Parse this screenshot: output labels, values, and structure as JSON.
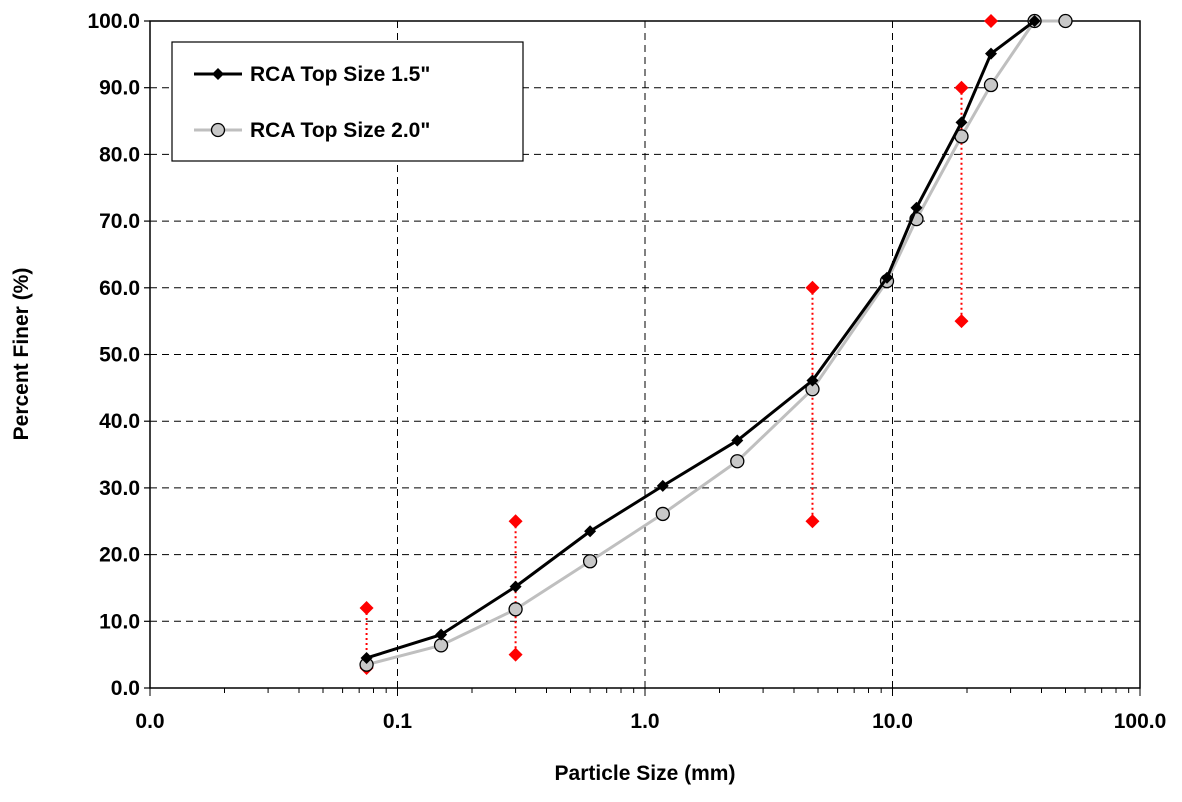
{
  "chart_data": {
    "type": "scatter",
    "title": "",
    "xlabel": "Particle Size (mm)",
    "ylabel": "Percent Finer (%)",
    "x_scale": "log",
    "xlim": [
      0.01,
      100
    ],
    "ylim": [
      0,
      100
    ],
    "x_tick_labels": [
      "0.0",
      "0.1",
      "1.0",
      "10.0",
      "100.0"
    ],
    "y_tick_labels": [
      "0.0",
      "10.0",
      "20.0",
      "30.0",
      "40.0",
      "50.0",
      "60.0",
      "70.0",
      "80.0",
      "90.0",
      "100.0"
    ],
    "grid": true,
    "legend_position": "top-left",
    "series": [
      {
        "name": "RCA Top Size 1.5\"",
        "color": "#000000",
        "marker": "diamond",
        "x": [
          0.075,
          0.15,
          0.3,
          0.6,
          1.18,
          2.36,
          4.75,
          9.5,
          12.5,
          19,
          25,
          37.5
        ],
        "y": [
          4.5,
          8,
          15.2,
          23.5,
          30.3,
          37.1,
          46.1,
          61.5,
          72,
          84.8,
          95.1,
          100
        ]
      },
      {
        "name": "RCA Top Size 2.0\"",
        "color": "#bfbfbf",
        "marker": "circle",
        "x": [
          0.075,
          0.15,
          0.3,
          0.6,
          1.18,
          2.36,
          4.75,
          9.5,
          12.5,
          19,
          25,
          37.5,
          50
        ],
        "y": [
          3.5,
          6.4,
          11.8,
          19,
          26.1,
          34,
          44.8,
          61,
          70.3,
          82.7,
          90.4,
          100,
          100
        ]
      },
      {
        "color": "#ff0000",
        "marker": "diamond",
        "style": "dotted-range",
        "ranges": [
          {
            "x": 0.075,
            "low": 3,
            "high": 12
          },
          {
            "x": 0.3,
            "low": 5,
            "high": 25
          },
          {
            "x": 4.75,
            "low": 25,
            "high": 60
          },
          {
            "x": 19,
            "low": 55,
            "high": 90
          },
          {
            "x": 25,
            "low": 100,
            "high": 100
          }
        ]
      }
    ]
  }
}
